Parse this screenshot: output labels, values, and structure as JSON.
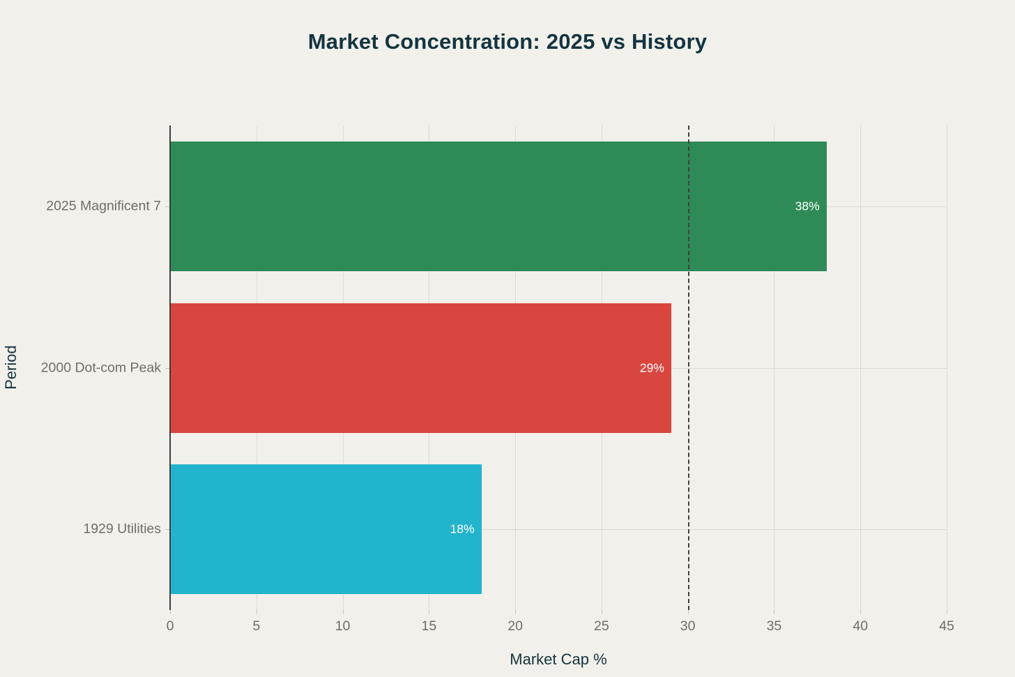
{
  "title": "Market Concentration: 2025 vs History",
  "chart_data": {
    "type": "bar",
    "orientation": "horizontal",
    "title": "Market Concentration: 2025 vs History",
    "xlabel": "Market Cap %",
    "ylabel": "Period",
    "categories": [
      "2025 Magnificent 7",
      "2000 Dot-com Peak",
      "1929 Utilities"
    ],
    "values": [
      38,
      29,
      18
    ],
    "value_labels": [
      "38%",
      "29%",
      "18%"
    ],
    "bar_colors": [
      "#2e8b57",
      "#d9463f",
      "#22b4cc"
    ],
    "xlim": [
      0,
      45
    ],
    "xticks": [
      0,
      5,
      10,
      15,
      20,
      25,
      30,
      35,
      40,
      45
    ],
    "reference_line_x": 30,
    "grid": true,
    "legend": "none",
    "colors": {
      "background": "#f1f0ea",
      "title_text": "#143440",
      "tick_text": "#6e6e69",
      "gridline": "#dcdbd5",
      "axis_line": "#3d3d3d",
      "reference_line": "#3f3f3f",
      "value_label_text": "#ffffff"
    }
  }
}
